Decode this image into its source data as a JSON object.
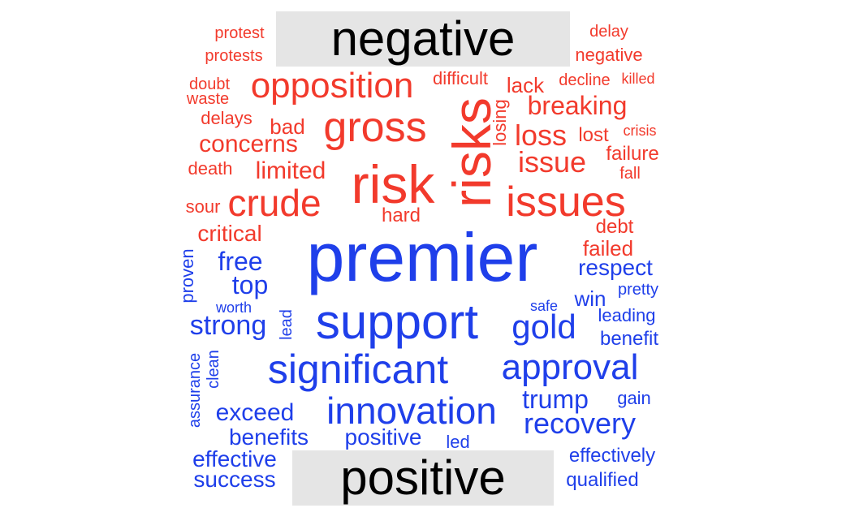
{
  "labels": {
    "negative": "negative",
    "positive": "positive"
  },
  "colors": {
    "negative": "#f23a2c",
    "positive": "#1f3fea",
    "label_bg": "#e5e5e5",
    "label_text": "#000000"
  },
  "negative_words": [
    "protest",
    "protests",
    "delay",
    "negative",
    "doubt",
    "waste",
    "opposition",
    "difficult",
    "lack",
    "decline",
    "killed",
    "breaking",
    "delays",
    "bad",
    "gross",
    "risks",
    "losing",
    "loss",
    "lost",
    "crisis",
    "concerns",
    "issue",
    "failure",
    "death",
    "limited",
    "risk",
    "fall",
    "sour",
    "crude",
    "issues",
    "hard",
    "debt",
    "critical",
    "failed"
  ],
  "positive_words": [
    "premier",
    "free",
    "respect",
    "top",
    "proven",
    "pretty",
    "worth",
    "safe",
    "win",
    "support",
    "leading",
    "strong",
    "lead",
    "gold",
    "benefit",
    "assurance",
    "clean",
    "significant",
    "approval",
    "trump",
    "gain",
    "exceed",
    "innovation",
    "recovery",
    "benefits",
    "positive",
    "led",
    "effective",
    "effectively",
    "success",
    "qualified"
  ]
}
